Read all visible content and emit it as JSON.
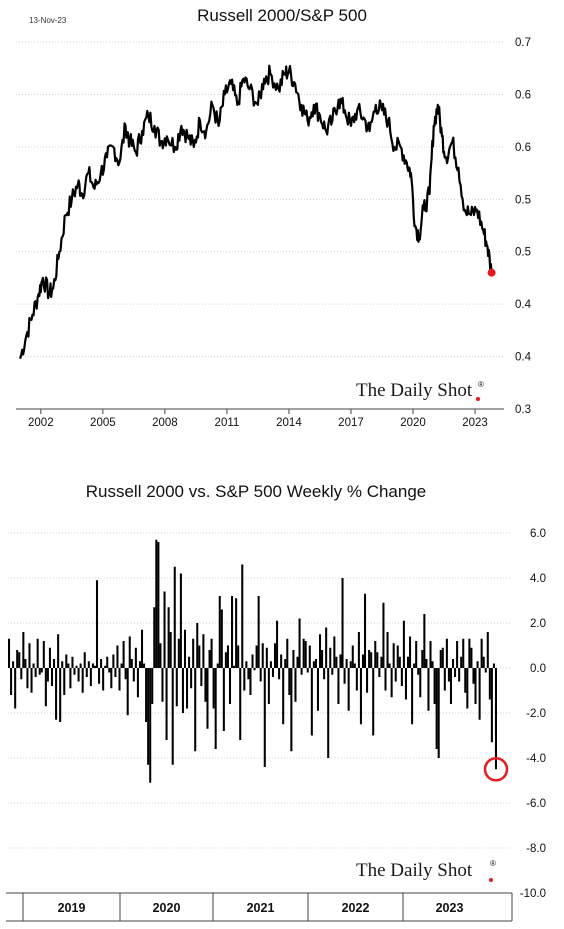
{
  "date_stamp": "13-Nov-23",
  "brand": "The Daily Shot",
  "brand_mark": "®",
  "colors": {
    "line": "#000000",
    "bar": "#000000",
    "marker": "#e8191f",
    "grid": "#cfcfcf",
    "axis": "#444444"
  },
  "chart_data": [
    {
      "type": "line",
      "title": "Russell 2000/S&P 500",
      "xlabel": "",
      "ylabel": "",
      "grid": "horizontal",
      "x_ticks": [
        "2002",
        "2005",
        "2008",
        "2011",
        "2014",
        "2017",
        "2020",
        "2023"
      ],
      "x_tick_values": [
        2002,
        2005,
        2008,
        2011,
        2014,
        2017,
        2020,
        2023
      ],
      "xlim": [
        2000.8,
        2024.4
      ],
      "y_ticks": [
        "0.7",
        "0.6",
        "0.6",
        "0.5",
        "0.5",
        "0.4",
        "0.4",
        "0.3"
      ],
      "y_tick_values": [
        0.7,
        0.65,
        0.6,
        0.55,
        0.5,
        0.45,
        0.4,
        0.35
      ],
      "ylim": [
        0.35,
        0.7
      ],
      "series": [
        {
          "x": [
            2001.0,
            2001.3,
            2001.6,
            2001.9,
            2002.1,
            2002.4,
            2002.6,
            2002.9,
            2003.2,
            2003.5,
            2003.8,
            2004.0,
            2004.3,
            2004.6,
            2004.9,
            2005.2,
            2005.5,
            2005.8,
            2006.1,
            2006.3,
            2006.6,
            2006.9,
            2007.2,
            2007.5,
            2007.8,
            2008.1,
            2008.5,
            2008.8,
            2009.1,
            2009.4,
            2009.7,
            2010.0,
            2010.3,
            2010.6,
            2010.9,
            2011.2,
            2011.5,
            2011.8,
            2012.1,
            2012.5,
            2012.8,
            2013.1,
            2013.5,
            2013.8,
            2014.0,
            2014.3,
            2014.6,
            2014.9,
            2015.2,
            2015.5,
            2015.8,
            2016.1,
            2016.4,
            2016.7,
            2017.0,
            2017.3,
            2017.6,
            2017.9,
            2018.2,
            2018.5,
            2018.8,
            2019.1,
            2019.4,
            2019.7,
            2019.9,
            2020.1,
            2020.3,
            2020.5,
            2020.8,
            2021.0,
            2021.2,
            2021.4,
            2021.6,
            2021.9,
            2022.2,
            2022.5,
            2022.8,
            2023.1,
            2023.4,
            2023.6,
            2023.8
          ],
          "y": [
            0.398,
            0.42,
            0.44,
            0.46,
            0.475,
            0.46,
            0.465,
            0.5,
            0.535,
            0.55,
            0.565,
            0.555,
            0.575,
            0.56,
            0.575,
            0.59,
            0.6,
            0.585,
            0.62,
            0.605,
            0.595,
            0.615,
            0.63,
            0.62,
            0.605,
            0.61,
            0.6,
            0.62,
            0.61,
            0.6,
            0.625,
            0.615,
            0.64,
            0.62,
            0.65,
            0.66,
            0.64,
            0.665,
            0.655,
            0.64,
            0.665,
            0.67,
            0.655,
            0.67,
            0.672,
            0.66,
            0.64,
            0.625,
            0.64,
            0.63,
            0.615,
            0.625,
            0.645,
            0.635,
            0.62,
            0.635,
            0.628,
            0.615,
            0.64,
            0.635,
            0.625,
            0.6,
            0.6,
            0.585,
            0.575,
            0.525,
            0.515,
            0.54,
            0.555,
            0.62,
            0.64,
            0.61,
            0.59,
            0.605,
            0.58,
            0.54,
            0.535,
            0.54,
            0.52,
            0.505,
            0.48
          ]
        }
      ],
      "last_value": {
        "x": 2023.8,
        "y": 0.48
      }
    },
    {
      "type": "bar",
      "title": "Russell 2000 vs. S&P 500 Weekly % Change",
      "xlabel": "",
      "ylabel": "",
      "grid": "horizontal",
      "x_ticks": [
        "2019",
        "2020",
        "2021",
        "2022",
        "2023"
      ],
      "y_ticks": [
        "6.0",
        "4.0",
        "2.0",
        "0.0",
        "-2.0",
        "-4.0",
        "-6.0",
        "-8.0",
        "-10.0"
      ],
      "y_tick_values": [
        6,
        4,
        2,
        0,
        -2,
        -4,
        -6,
        -8,
        -10
      ],
      "ylim": [
        -10,
        6
      ],
      "weekly_change_pct": [
        1.3,
        -1.2,
        0.3,
        -1.8,
        0.8,
        0.7,
        -0.5,
        1.6,
        0.4,
        -0.9,
        1.1,
        -1.1,
        0.2,
        -0.4,
        1.3,
        -0.3,
        -0.2,
        1.2,
        -1.7,
        -0.6,
        0.9,
        -0.8,
        0.4,
        -2.3,
        1.5,
        -2.4,
        0.3,
        -1.2,
        0.6,
        0.2,
        -0.9,
        0.5,
        -0.3,
        0.1,
        -0.6,
        0.2,
        -1.1,
        0.7,
        -0.4,
        0.3,
        -0.8,
        0.2,
        0.1,
        3.9,
        -0.7,
        0.4,
        -1.0,
        0.1,
        0.5,
        -0.2,
        -0.9,
        0.6,
        -0.4,
        1.0,
        -1.0,
        0.2,
        1.2,
        -0.5,
        -2.1,
        1.4,
        0.4,
        -0.6,
        0.9,
        -1.3,
        0.3,
        1.7,
        0.2,
        -2.4,
        -4.3,
        -5.1,
        -1.6,
        2.7,
        5.7,
        5.6,
        1.1,
        -1.5,
        3.4,
        -3.2,
        2.7,
        1.6,
        -4.3,
        4.5,
        -1.7,
        1.3,
        4.2,
        -2.0,
        1.7,
        -1.8,
        0.5,
        -0.9,
        1.3,
        -3.7,
        2.0,
        1.0,
        -0.8,
        1.5,
        -1.5,
        -2.7,
        0.8,
        1.3,
        -1.8,
        -3.6,
        0.2,
        3.2,
        2.6,
        -2.8,
        0.7,
        1.0,
        -1.6,
        3.2,
        0.1,
        3.1,
        1.0,
        -3.2,
        4.6,
        -1.0,
        0.3,
        -0.5,
        -1.2,
        0.6,
        -0.1,
        1.0,
        3.2,
        -0.6,
        1.1,
        -4.4,
        0.9,
        -1.6,
        0.3,
        -0.4,
        1.1,
        2.1,
        -0.5,
        0.6,
        -2.5,
        0.4,
        1.3,
        -1.2,
        -3.7,
        0.8,
        -1.5,
        0.5,
        2.2,
        -0.3,
        1.3,
        1.2,
        -0.2,
        1.0,
        -3.0,
        0.3,
        0.4,
        -1.9,
        1.5,
        0.8,
        -0.5,
        1.8,
        -4.0,
        0.9,
        -0.3,
        1.4,
        0.5,
        -1.6,
        0.6,
        4.0,
        -0.7,
        0.4,
        -1.9,
        0.3,
        1.0,
        0.2,
        -1.0,
        1.6,
        -2.5,
        0.6,
        3.3,
        -1.1,
        0.8,
        0.7,
        -3.0,
        1.2,
        0.7,
        -0.4,
        0.5,
        2.9,
        -1.0,
        1.6,
        0.2,
        -1.3,
        1.1,
        -0.6,
        1.0,
        0.5,
        -0.8,
        2.1,
        -1.4,
        0.5,
        1.4,
        -2.5,
        0.2,
        1.2,
        -0.3,
        -1.3,
        0.8,
        2.4,
        0.4,
        -1.9,
        1.2,
        0.3,
        -1.6,
        -3.6,
        -4.0,
        0.8,
        0.9,
        -1.0,
        1.3,
        -0.6,
        -1.6,
        0.4,
        -0.4,
        1.2,
        -0.6,
        0.5,
        1.3,
        -1.1,
        -1.8,
        1.3,
        0.9,
        -0.7,
        -1.6,
        0.3,
        -2.3,
        1.3,
        0.5,
        -0.2,
        1.6,
        -1.4,
        -3.3,
        0.2,
        -4.5
      ],
      "last_value": -4.5
    }
  ]
}
